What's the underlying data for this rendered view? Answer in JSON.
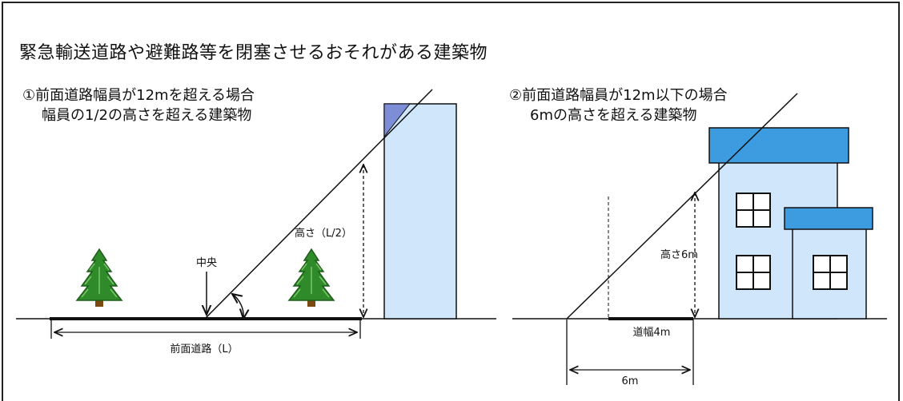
{
  "title": "緊急輸送道路や避難路等を閉塞させるおそれがある建築物",
  "case1": {
    "heading": "①前面道路幅員が12mを超える場合",
    "subheading": "幅員の1/2の高さを超える建築物",
    "label_center": "中央",
    "label_height": "高さ（L/2）",
    "label_road": "前面道路（L）"
  },
  "case2": {
    "heading": "②前面道路幅員が12m以下の場合",
    "subheading": "6mの高さを超える建築物",
    "label_height": "高さ6m",
    "label_road_width": "道幅4m",
    "label_distance": "6m"
  },
  "colors": {
    "building_fill": "#cfe6fb",
    "roof": "#3d9be0",
    "overlap": "#7d8ed6",
    "tree_green": "#2f8a2a",
    "trunk": "#7a4a12"
  }
}
